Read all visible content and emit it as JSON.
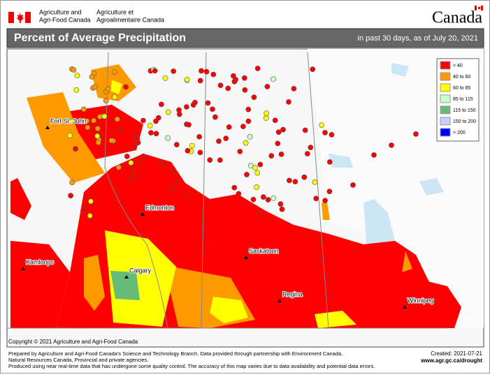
{
  "header": {
    "agency_en": [
      "Agriculture and",
      "Agri-Food Canada"
    ],
    "agency_fr": [
      "Agriculture et",
      "Agroalimentaire Canada"
    ],
    "wordmark": "Canada"
  },
  "title": "Percent of Average Precipitation",
  "subtitle": "in past 30 days, as of July 20, 2021",
  "legend": [
    {
      "label": "< 40",
      "color": "#ff0000"
    },
    {
      "label": "40 to 60",
      "color": "#ff9900"
    },
    {
      "label": "60 to 85",
      "color": "#ffff00"
    },
    {
      "label": "85 to 115",
      "color": "#ccffcc"
    },
    {
      "label": "115 to 150",
      "color": "#66bb77"
    },
    {
      "label": "150 to 200",
      "color": "#ccccff"
    },
    {
      "label": "> 200",
      "color": "#0000ff"
    }
  ],
  "cities": [
    "Fort St. John",
    "Edmonton",
    "Kamloops",
    "Calgary",
    "Saskatoon",
    "Regina",
    "Winnipeg"
  ],
  "copyright": "Copyright © 2021 Agriculture and Agri-Food Canada",
  "footer": {
    "lines": [
      "Prepared by Agriculture and Agri-Food Canada's Science and Technology Branch. Data provided through partnership with Environment Canada,",
      "Natural Resources Canada, Provincial and private agencies.",
      "Produced using near real-time data that has undergone some quality control. The accuracy of this map varies due to data availability and potential data errors."
    ],
    "created": "Created: 2021-07-21",
    "url": "www.agr.gc.ca/drought"
  }
}
